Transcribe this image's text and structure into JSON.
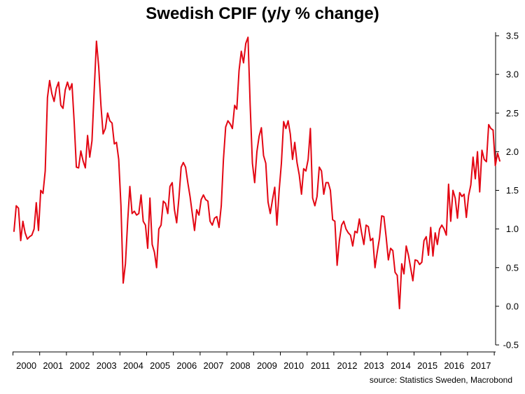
{
  "chart_data": {
    "type": "line",
    "title": "Swedish CPIF (y/y % change)",
    "source": "source: Statistics Sweden, Macrobond",
    "xlabel": "",
    "ylabel": "",
    "ylim": [
      -0.5,
      3.5
    ],
    "yticks": [
      -0.5,
      0.0,
      0.5,
      1.0,
      1.5,
      2.0,
      2.5,
      3.0,
      3.5
    ],
    "ytick_labels": [
      "-0.5",
      "0.0",
      "0.5",
      "1.0",
      "1.5",
      "2.0",
      "2.5",
      "3.0",
      "3.5"
    ],
    "xlim": [
      "2000-01",
      "2017-12"
    ],
    "xtick_labels": [
      "2000",
      "2001",
      "2002",
      "2003",
      "2004",
      "2005",
      "2006",
      "2007",
      "2008",
      "2009",
      "2010",
      "2011",
      "2012",
      "2013",
      "2014",
      "2015",
      "2016",
      "2017"
    ],
    "grid": false,
    "y_axis_side": "right",
    "colors": {
      "series": "#e30613",
      "axis": "#000000"
    },
    "series": [
      {
        "start": "2000-01",
        "frequency": "monthly",
        "values": [
          0.97,
          1.3,
          1.27,
          0.85,
          1.1,
          0.95,
          0.87,
          0.9,
          0.92,
          1.0,
          1.34,
          0.98,
          1.5,
          1.46,
          1.75,
          2.7,
          2.92,
          2.75,
          2.65,
          2.82,
          2.9,
          2.6,
          2.56,
          2.8,
          2.9,
          2.8,
          2.88,
          2.38,
          1.8,
          1.79,
          2.01,
          1.88,
          1.79,
          2.21,
          1.93,
          2.14,
          2.8,
          3.43,
          3.1,
          2.6,
          2.23,
          2.3,
          2.5,
          2.4,
          2.37,
          2.1,
          2.12,
          1.9,
          1.3,
          0.3,
          0.55,
          1.1,
          1.55,
          1.2,
          1.23,
          1.18,
          1.2,
          1.44,
          1.1,
          1.05,
          0.75,
          1.4,
          0.8,
          0.7,
          0.5,
          1.0,
          1.05,
          1.36,
          1.33,
          1.2,
          1.55,
          1.6,
          1.25,
          1.08,
          1.4,
          1.8,
          1.86,
          1.8,
          1.6,
          1.42,
          1.2,
          0.98,
          1.25,
          1.18,
          1.38,
          1.44,
          1.38,
          1.36,
          1.1,
          1.05,
          1.14,
          1.16,
          1.02,
          1.3,
          1.9,
          2.32,
          2.4,
          2.36,
          2.3,
          2.6,
          2.55,
          3.05,
          3.3,
          3.15,
          3.4,
          3.48,
          2.6,
          1.85,
          1.6,
          2.0,
          2.2,
          2.31,
          1.95,
          1.85,
          1.35,
          1.2,
          1.38,
          1.54,
          1.05,
          1.5,
          1.85,
          2.39,
          2.3,
          2.4,
          2.23,
          1.9,
          2.12,
          1.86,
          1.7,
          1.45,
          1.78,
          1.75,
          1.9,
          2.3,
          1.4,
          1.3,
          1.42,
          1.8,
          1.75,
          1.45,
          1.6,
          1.6,
          1.5,
          1.12,
          1.1,
          0.53,
          0.85,
          1.05,
          1.1,
          1.0,
          0.95,
          0.92,
          0.78,
          0.97,
          0.95,
          1.13,
          0.95,
          0.8,
          1.05,
          1.03,
          0.85,
          0.88,
          0.5,
          0.7,
          0.88,
          1.17,
          1.16,
          0.9,
          0.6,
          0.75,
          0.72,
          0.44,
          0.4,
          -0.03,
          0.55,
          0.42,
          0.78,
          0.66,
          0.5,
          0.33,
          0.6,
          0.59,
          0.54,
          0.57,
          0.85,
          0.9,
          0.66,
          1.02,
          0.65,
          0.95,
          0.8,
          1.0,
          1.05,
          1.0,
          0.92,
          1.58,
          1.1,
          1.5,
          1.4,
          1.14,
          1.47,
          1.42,
          1.45,
          1.15,
          1.43,
          1.57,
          1.93,
          1.65,
          2.0,
          1.48,
          2.02,
          1.9,
          1.87,
          2.35,
          2.3,
          2.28,
          1.82,
          1.98,
          1.88
        ]
      }
    ]
  }
}
